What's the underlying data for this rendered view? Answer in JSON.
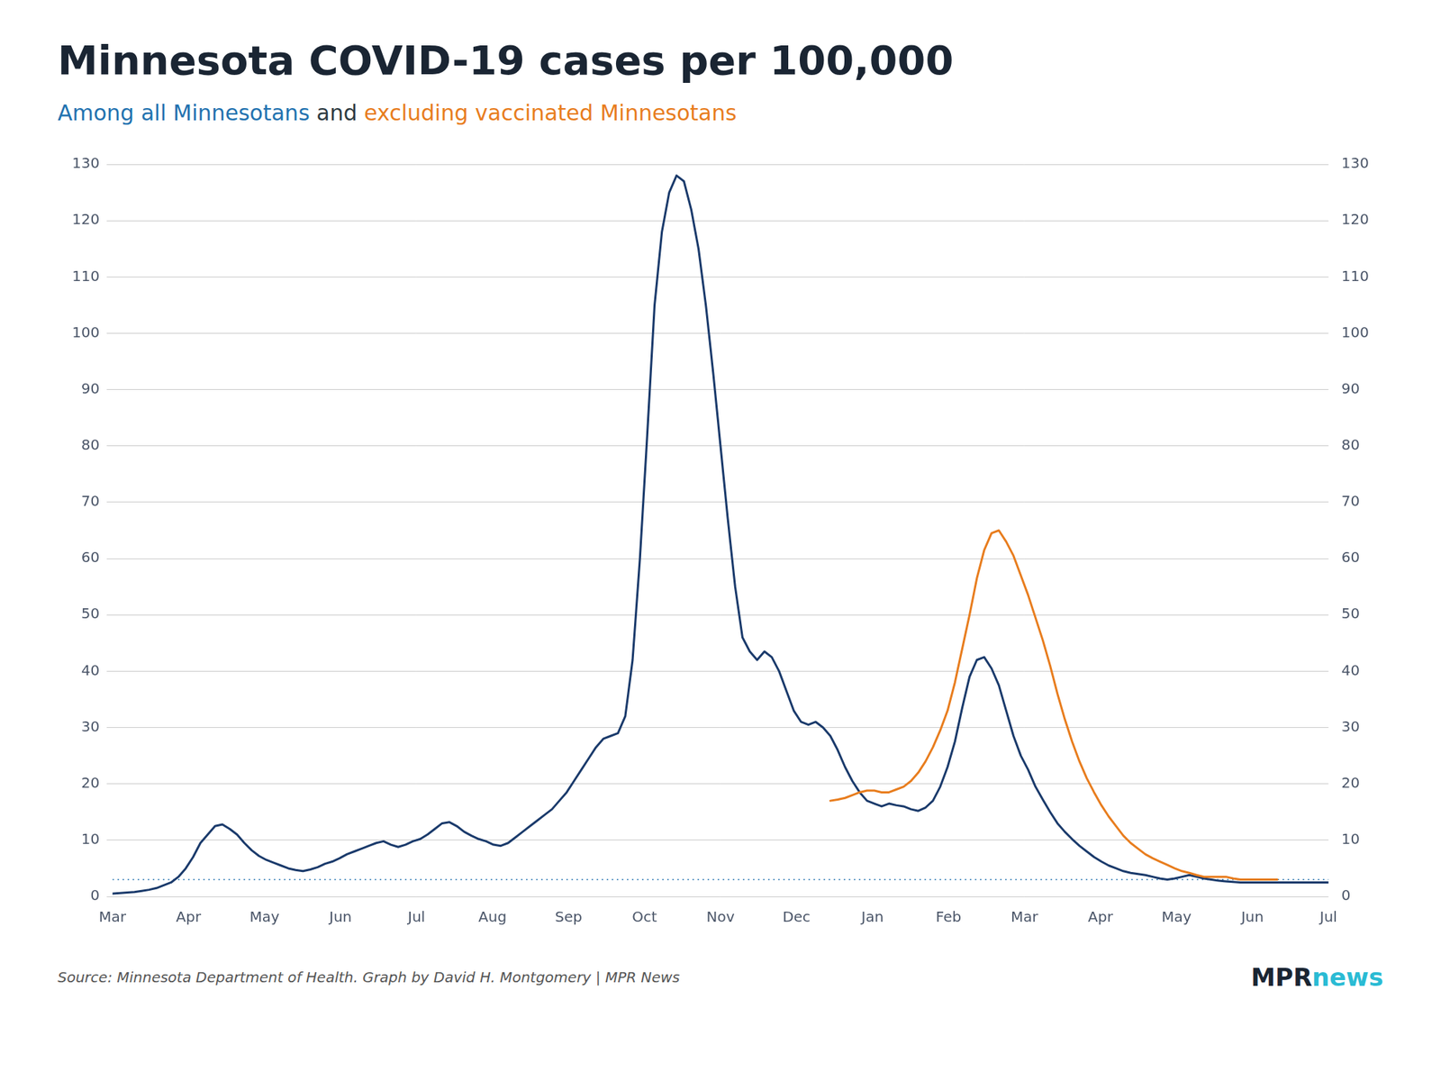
{
  "chart_data": {
    "type": "line",
    "title": "Minnesota COVID-19 cases per 100,000",
    "title_color": "#1a2533",
    "subtitle": [
      {
        "text": "Among all Minnesotans",
        "color": "#2272b0"
      },
      {
        "text": " and ",
        "color": "#2d3a42"
      },
      {
        "text": "excluding vaccinated Minnesotans",
        "color": "#e87d1e"
      }
    ],
    "source": "Source: Minnesota Department of Health. Graph by David H. Montgomery | MPR News",
    "logo": [
      {
        "text": "MPR",
        "color": "#1a2533"
      },
      {
        "text": "news",
        "color": "#2abbd4"
      }
    ],
    "x": [
      0,
      1,
      2,
      3,
      4,
      5,
      6,
      7,
      8,
      9,
      10,
      11,
      12,
      13,
      14,
      15,
      16,
      17,
      18,
      19,
      20,
      21,
      22,
      23,
      24,
      25,
      26,
      27,
      28,
      29,
      30,
      31,
      32,
      33,
      34,
      35,
      36,
      37,
      38,
      39,
      40,
      41,
      42,
      43,
      44,
      45,
      46,
      47,
      48,
      49,
      50,
      51,
      52,
      53,
      54,
      55,
      56,
      57,
      58,
      59,
      60,
      61,
      62,
      63,
      64,
      65,
      66,
      67,
      68,
      69,
      70,
      71,
      72,
      73,
      74,
      75,
      76,
      77,
      78,
      79,
      80,
      81,
      82,
      83,
      84,
      85,
      86,
      87,
      88,
      89,
      90,
      91,
      92,
      93,
      94,
      95,
      96,
      97,
      98,
      99,
      100,
      101,
      102,
      103,
      104,
      105,
      106,
      107,
      108,
      109,
      110,
      111,
      112,
      113,
      114,
      115,
      116,
      117,
      118,
      119,
      120,
      121,
      122,
      123,
      124,
      125,
      126,
      127,
      128,
      129,
      130,
      131,
      132,
      133,
      134,
      135,
      136,
      137,
      138,
      139,
      140,
      141,
      142,
      143,
      144,
      145,
      146,
      147,
      148,
      149,
      150,
      151,
      152,
      153,
      154,
      155,
      156,
      157,
      158,
      159,
      160,
      161,
      162,
      163,
      164,
      165,
      166
    ],
    "series": [
      {
        "color": "#1a3a6b",
        "values": [
          0.5,
          0.6,
          0.7,
          0.8,
          1.0,
          1.2,
          1.5,
          2.0,
          2.5,
          3.5,
          5.0,
          7.0,
          9.5,
          11.0,
          12.5,
          12.8,
          12.0,
          11.0,
          9.5,
          8.2,
          7.2,
          6.5,
          6.0,
          5.5,
          5.0,
          4.7,
          4.5,
          4.8,
          5.2,
          5.8,
          6.2,
          6.8,
          7.5,
          8.0,
          8.5,
          9.0,
          9.5,
          9.8,
          9.2,
          8.8,
          9.2,
          9.8,
          10.2,
          11.0,
          12.0,
          13.0,
          13.2,
          12.5,
          11.5,
          10.8,
          10.2,
          9.8,
          9.2,
          9.0,
          9.5,
          10.5,
          11.5,
          12.5,
          13.5,
          14.5,
          15.5,
          17.0,
          18.5,
          20.5,
          22.5,
          24.5,
          26.5,
          28.0,
          28.5,
          29.0,
          32.0,
          42.0,
          60.0,
          82.0,
          105.0,
          118.0,
          125.0,
          128.0,
          127.0,
          122.0,
          115.0,
          105.0,
          93.0,
          80.0,
          67.0,
          55.0,
          46.0,
          43.5,
          42.0,
          43.5,
          42.5,
          40.0,
          36.5,
          33.0,
          31.0,
          30.5,
          31.0,
          30.0,
          28.5,
          26.0,
          23.0,
          20.5,
          18.5,
          17.0,
          16.5,
          16.0,
          16.5,
          16.2,
          16.0,
          15.5,
          15.2,
          15.8,
          17.0,
          19.5,
          23.0,
          27.5,
          33.5,
          39.0,
          42.0,
          42.5,
          40.5,
          37.5,
          33.0,
          28.5,
          25.0,
          22.5,
          19.5,
          17.2,
          15.0,
          13.0,
          11.5,
          10.2,
          9.0,
          8.0,
          7.0,
          6.2,
          5.5,
          5.0,
          4.5,
          4.2,
          4.0,
          3.8,
          3.5,
          3.2,
          3.0,
          3.2,
          3.5,
          3.8,
          3.5,
          3.2,
          3.0,
          2.8,
          2.7,
          2.6,
          2.5,
          2.5,
          2.5,
          2.5,
          2.5,
          2.5,
          2.5,
          2.5,
          2.5,
          2.5,
          2.5,
          2.5,
          2.5
        ]
      },
      {
        "color": "#e87d1e",
        "values": [
          null,
          null,
          null,
          null,
          null,
          null,
          null,
          null,
          null,
          null,
          null,
          null,
          null,
          null,
          null,
          null,
          null,
          null,
          null,
          null,
          null,
          null,
          null,
          null,
          null,
          null,
          null,
          null,
          null,
          null,
          null,
          null,
          null,
          null,
          null,
          null,
          null,
          null,
          null,
          null,
          null,
          null,
          null,
          null,
          null,
          null,
          null,
          null,
          null,
          null,
          null,
          null,
          null,
          null,
          null,
          null,
          null,
          null,
          null,
          null,
          null,
          null,
          null,
          null,
          null,
          null,
          null,
          null,
          null,
          null,
          null,
          null,
          null,
          null,
          null,
          null,
          null,
          null,
          null,
          null,
          null,
          null,
          null,
          null,
          null,
          null,
          null,
          null,
          null,
          null,
          null,
          null,
          null,
          null,
          null,
          null,
          null,
          null,
          17.0,
          17.2,
          17.5,
          18.0,
          18.5,
          18.8,
          18.8,
          18.5,
          18.5,
          19.0,
          19.5,
          20.5,
          22.0,
          24.0,
          26.5,
          29.5,
          33.0,
          38.0,
          44.0,
          50.0,
          56.5,
          61.5,
          64.5,
          65.0,
          63.0,
          60.5,
          57.0,
          53.5,
          49.5,
          45.5,
          41.0,
          36.0,
          31.5,
          27.5,
          24.0,
          21.0,
          18.5,
          16.2,
          14.2,
          12.5,
          10.8,
          9.5,
          8.5,
          7.5,
          6.8,
          6.2,
          5.6,
          5.0,
          4.5,
          4.2,
          3.8,
          3.5,
          3.5,
          3.5,
          3.5,
          3.2,
          3.0,
          3.0,
          3.0,
          3.0,
          3.0,
          3.0,
          null,
          null,
          null,
          null,
          null,
          null,
          null
        ]
      }
    ],
    "hline": {
      "value": 3.0,
      "color": "#2272b0",
      "line_style": "dotted"
    },
    "xlim": [
      0,
      166
    ],
    "xticks": [
      {
        "value": 0,
        "label": "Mar"
      },
      {
        "value": 10.375,
        "label": "Apr"
      },
      {
        "value": 20.75,
        "label": "May"
      },
      {
        "value": 31.125,
        "label": "Jun"
      },
      {
        "value": 41.5,
        "label": "Jul"
      },
      {
        "value": 51.875,
        "label": "Aug"
      },
      {
        "value": 62.25,
        "label": "Sep"
      },
      {
        "value": 72.625,
        "label": "Oct"
      },
      {
        "value": 83,
        "label": "Nov"
      },
      {
        "value": 93.375,
        "label": "Dec"
      },
      {
        "value": 103.75,
        "label": "Jan"
      },
      {
        "value": 114.125,
        "label": "Feb"
      },
      {
        "value": 124.5,
        "label": "Mar"
      },
      {
        "value": 134.875,
        "label": "Apr"
      },
      {
        "value": 145.25,
        "label": "May"
      },
      {
        "value": 155.625,
        "label": "Jun"
      },
      {
        "value": 166,
        "label": "Jul"
      }
    ],
    "ylim": [
      0,
      130
    ],
    "yticks": [
      0,
      10,
      20,
      30,
      40,
      50,
      60,
      70,
      80,
      90,
      100,
      110,
      120,
      130
    ],
    "y2lim": [
      0,
      130
    ],
    "y2ticks": [
      0,
      10,
      20,
      30,
      40,
      50,
      60,
      70,
      80,
      90,
      100,
      110,
      120,
      130
    ],
    "grid": "y",
    "legend": false
  }
}
